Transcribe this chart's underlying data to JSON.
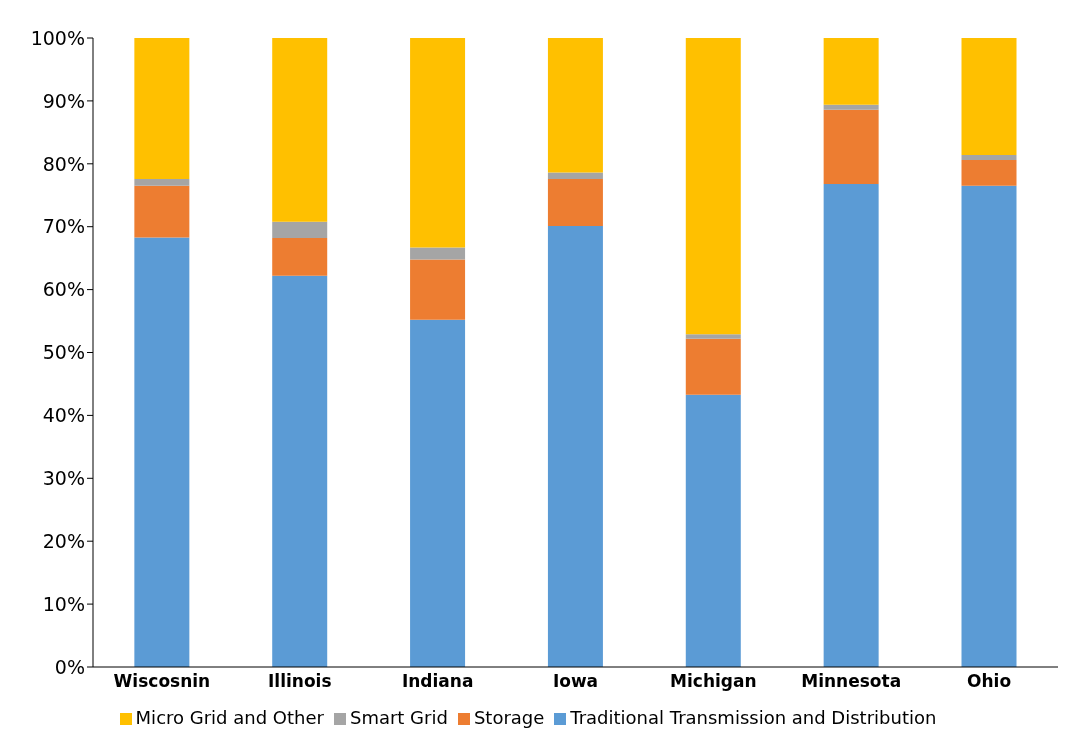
{
  "chart_data": {
    "type": "bar",
    "stacked": true,
    "categories": [
      "Wiscosnin",
      "Illinois",
      "Indiana",
      "Iowa",
      "Michigan",
      "Minnesota",
      "Ohio"
    ],
    "series": [
      {
        "name": "Traditional Transmission and Distribution",
        "color": "#5b9bd5",
        "values": [
          68.3,
          62.2,
          55.2,
          70.1,
          43.3,
          76.8,
          76.5
        ]
      },
      {
        "name": "Storage",
        "color": "#ed7d31",
        "values": [
          8.2,
          6.0,
          9.6,
          7.5,
          8.9,
          11.8,
          4.1
        ]
      },
      {
        "name": "Smart Grid",
        "color": "#a5a5a5",
        "values": [
          1.1,
          2.6,
          1.9,
          1.0,
          0.7,
          0.8,
          0.8
        ]
      },
      {
        "name": "Micro Grid and Other",
        "color": "#ffc000",
        "values": [
          22.4,
          29.2,
          33.3,
          21.4,
          47.1,
          10.6,
          18.6
        ]
      }
    ],
    "ylim": [
      0,
      100
    ],
    "yticks": [
      {
        "value": 0,
        "label": "0%"
      },
      {
        "value": 10,
        "label": "10%"
      },
      {
        "value": 20,
        "label": "20%"
      },
      {
        "value": 30,
        "label": "30%"
      },
      {
        "value": 40,
        "label": "40%"
      },
      {
        "value": 50,
        "label": "50%"
      },
      {
        "value": 60,
        "label": "60%"
      },
      {
        "value": 70,
        "label": "70%"
      },
      {
        "value": 80,
        "label": "80%"
      },
      {
        "value": 90,
        "label": "90%"
      },
      {
        "value": 100,
        "label": "100%"
      }
    ],
    "grid": false,
    "legend": "bottom"
  }
}
